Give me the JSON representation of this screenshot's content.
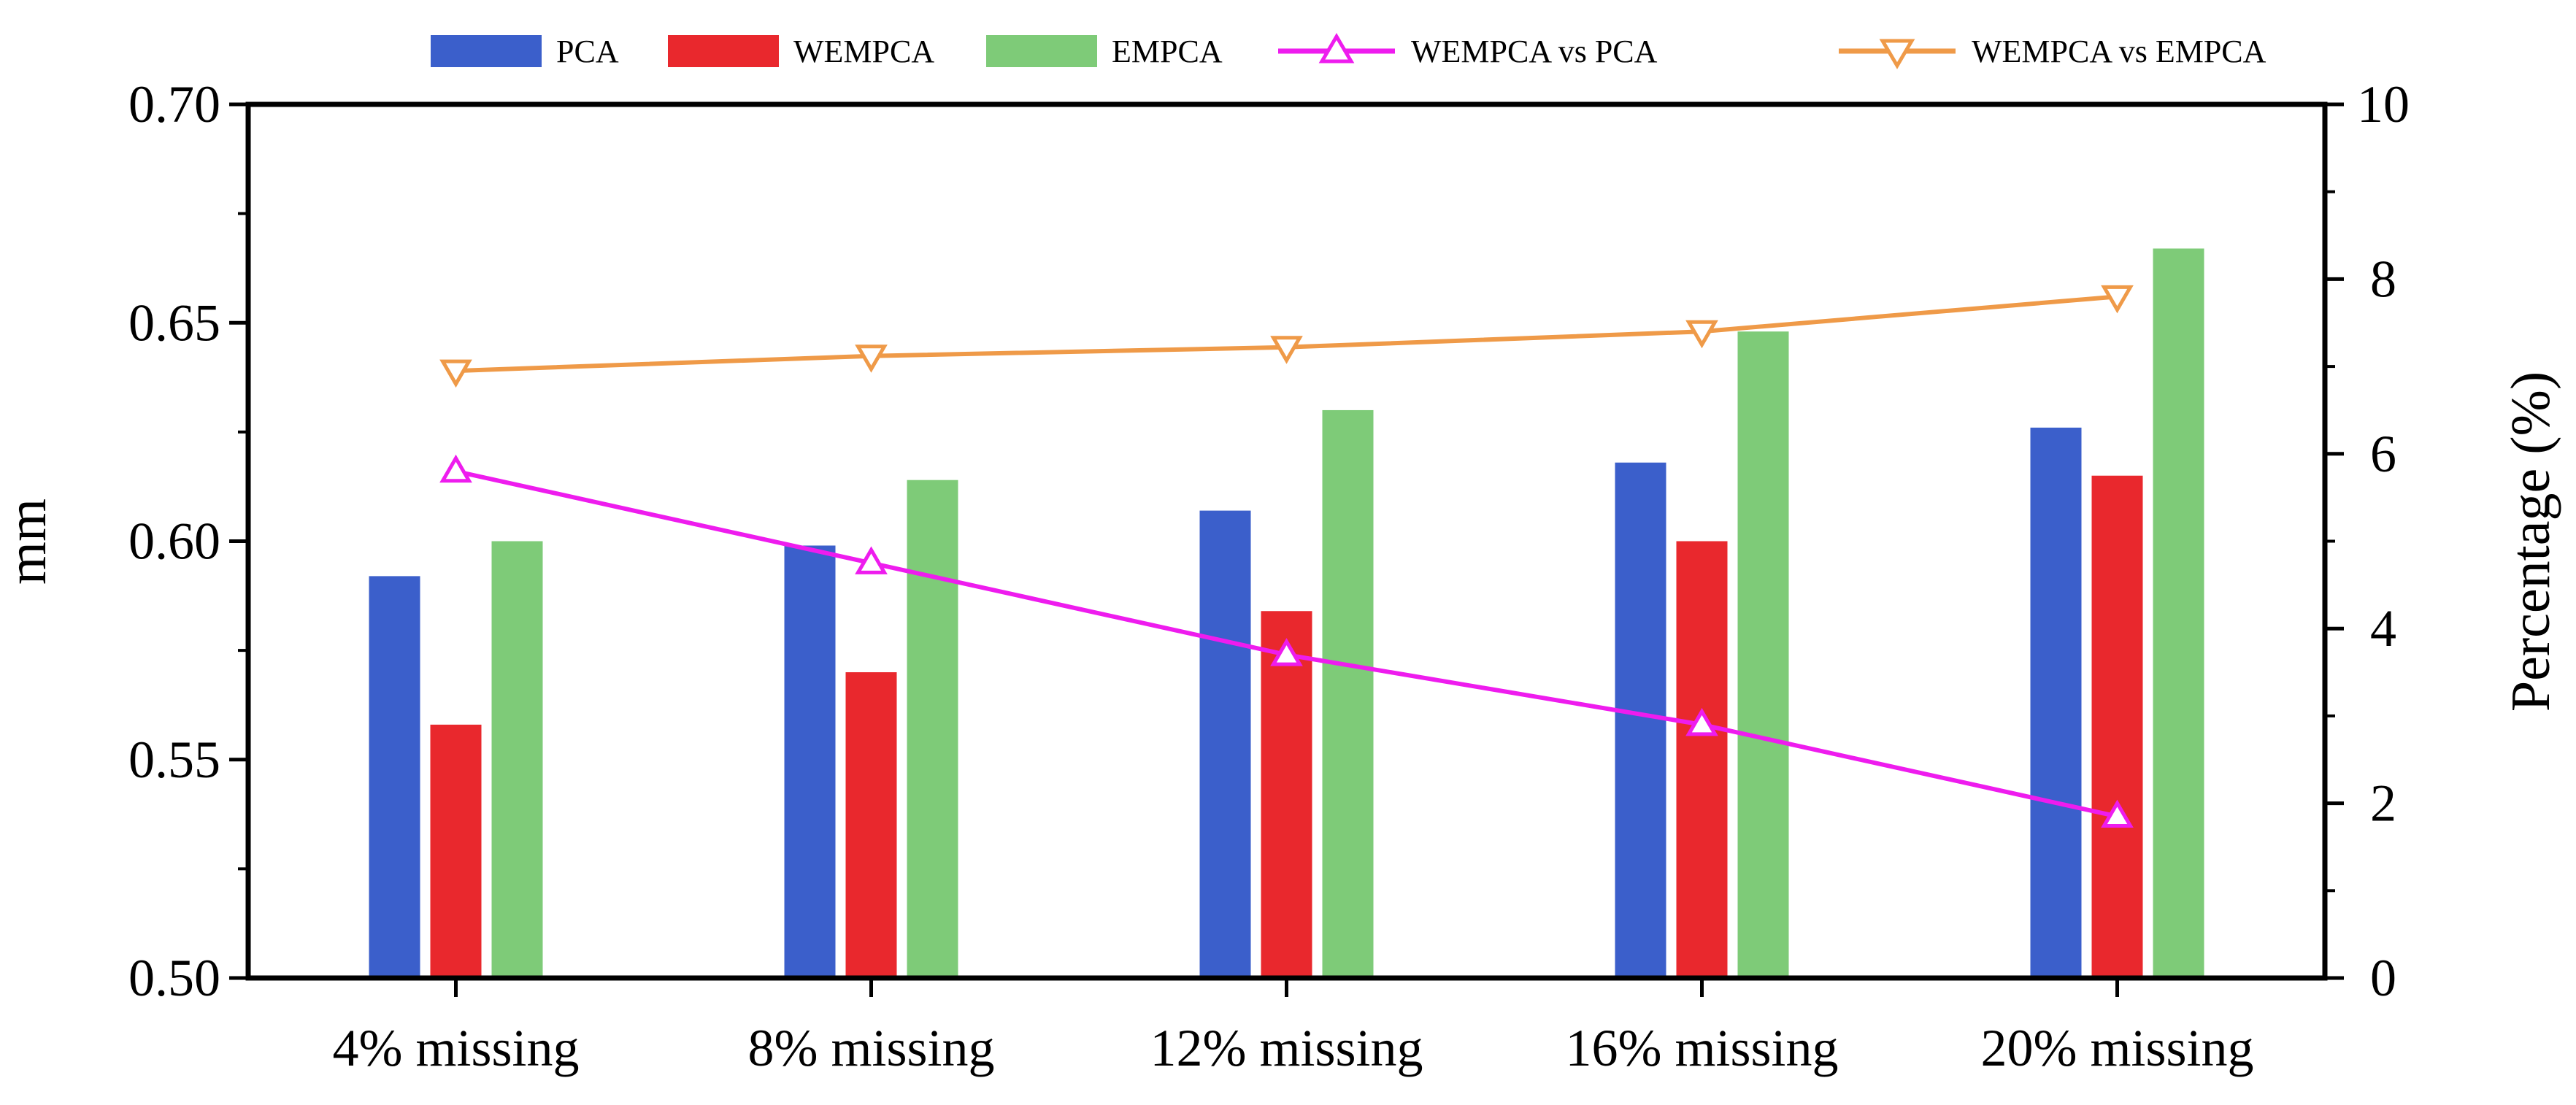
{
  "chart_data": {
    "type": "bar",
    "categories": [
      "4% missing",
      "8% missing",
      "12% missing",
      "16% missing",
      "20% missing"
    ],
    "series": [
      {
        "name": "PCA",
        "axis": "left",
        "kind": "bar",
        "color": "#3b5fcb",
        "values": [
          0.592,
          0.599,
          0.607,
          0.618,
          0.626
        ]
      },
      {
        "name": "WEMPCA",
        "axis": "left",
        "kind": "bar",
        "color": "#e9282d",
        "values": [
          0.558,
          0.57,
          0.584,
          0.6,
          0.615
        ]
      },
      {
        "name": "EMPCA",
        "axis": "left",
        "kind": "bar",
        "color": "#7ecb78",
        "values": [
          0.6,
          0.614,
          0.63,
          0.648,
          0.667
        ]
      },
      {
        "name": "WEMPCA vs PCA",
        "axis": "right",
        "kind": "line",
        "marker": "triangle-up",
        "color": "#ee1cee",
        "values": [
          5.8,
          4.75,
          3.7,
          2.9,
          1.85
        ]
      },
      {
        "name": "WEMPCA vs EMPCA",
        "axis": "right",
        "kind": "line",
        "marker": "triangle-down",
        "color": "#ef9a48",
        "values": [
          6.95,
          7.12,
          7.22,
          7.4,
          7.8
        ]
      }
    ],
    "ylabel": "mm",
    "y2label": "Percentage (%)",
    "ylim": [
      0.5,
      0.7
    ],
    "y_ticks": [
      "0.50",
      "0.55",
      "0.60",
      "0.65",
      "0.70"
    ],
    "y2lim": [
      0,
      10
    ],
    "y2_ticks": [
      "0",
      "2",
      "4",
      "6",
      "8",
      "10"
    ],
    "legend_position": "top",
    "grid": false
  }
}
